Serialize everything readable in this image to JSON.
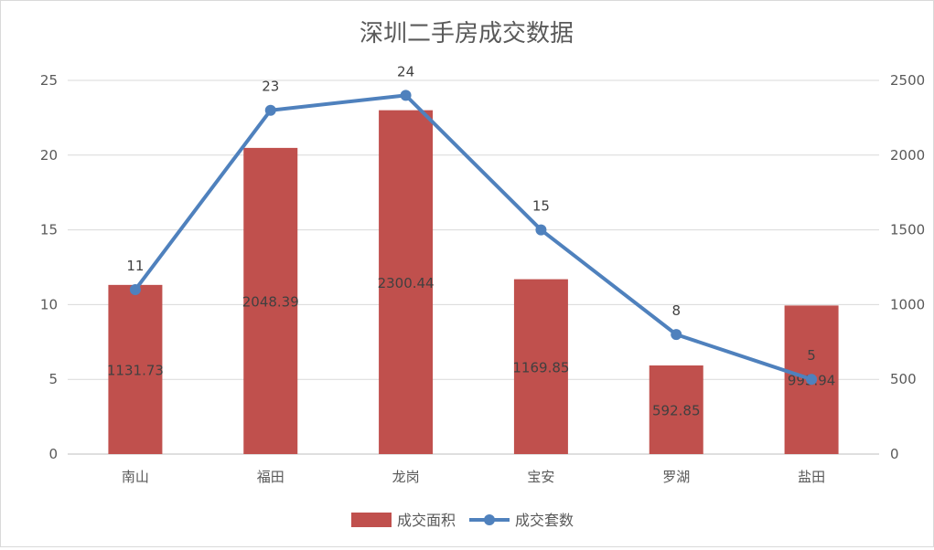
{
  "chart_data": {
    "type": "bar+line",
    "title": "深圳二手房成交数据",
    "categories": [
      "南山",
      "福田",
      "龙岗",
      "宝安",
      "罗湖",
      "盐田"
    ],
    "series": [
      {
        "name": "成交面积",
        "type": "bar",
        "axis": "right",
        "values": [
          1131.73,
          2048.39,
          2300.44,
          1169.85,
          592.85,
          993.94
        ],
        "labels": [
          "1131.73",
          "2048.39",
          "2300.44",
          "1169.85",
          "592.85",
          "993.94"
        ],
        "color": "#c0504d"
      },
      {
        "name": "成交套数",
        "type": "line",
        "axis": "left",
        "values": [
          11,
          23,
          24,
          15,
          8,
          5
        ],
        "labels": [
          "11",
          "23",
          "24",
          "15",
          "8",
          "5"
        ],
        "color": "#4f81bd"
      }
    ],
    "y_left": {
      "range": [
        0,
        25
      ],
      "ticks": [
        0,
        5,
        10,
        15,
        20,
        25
      ],
      "tick_labels": [
        "0",
        "5",
        "10",
        "15",
        "20",
        "25"
      ]
    },
    "y_right": {
      "range": [
        0,
        2500
      ],
      "ticks": [
        0,
        500,
        1000,
        1500,
        2000,
        2500
      ],
      "tick_labels": [
        "0",
        "500",
        "1000",
        "1500",
        "2000",
        "2500"
      ]
    },
    "grid": true,
    "legend_position": "bottom"
  }
}
